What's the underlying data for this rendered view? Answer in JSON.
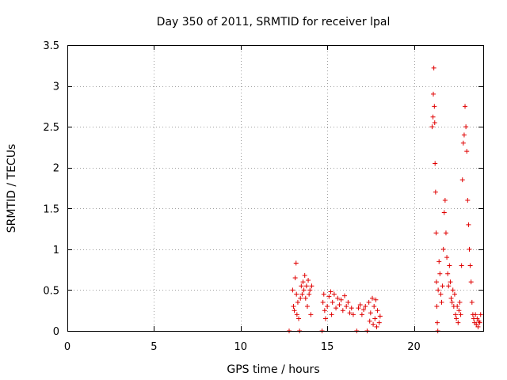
{
  "chart_data": {
    "type": "scatter",
    "title": "Day 350 of 2011, SRMTID for receiver lpal",
    "xlabel": "GPS time / hours",
    "ylabel": "SRMTID / TECUs",
    "xlim": [
      0,
      24
    ],
    "ylim": [
      0,
      3.5
    ],
    "grid": true,
    "marker": "plus",
    "color": "#e00000",
    "xticks": [
      {
        "value": 0,
        "label": "0"
      },
      {
        "value": 5,
        "label": "5"
      },
      {
        "value": 10,
        "label": "10"
      },
      {
        "value": 15,
        "label": "15"
      },
      {
        "value": 20,
        "label": "20"
      }
    ],
    "yticks": [
      {
        "value": 0,
        "label": "0"
      },
      {
        "value": 0.5,
        "label": "0.5"
      },
      {
        "value": 1,
        "label": "1"
      },
      {
        "value": 1.5,
        "label": "1.5"
      },
      {
        "value": 2,
        "label": "2"
      },
      {
        "value": 2.5,
        "label": "2.5"
      },
      {
        "value": 3,
        "label": "3"
      },
      {
        "value": 3.5,
        "label": "3.5"
      }
    ],
    "series": [
      {
        "name": "SRMTID",
        "points": [
          [
            12.8,
            0.0
          ],
          [
            13.0,
            0.5
          ],
          [
            13.05,
            0.3
          ],
          [
            13.1,
            0.25
          ],
          [
            13.15,
            0.65
          ],
          [
            13.2,
            0.83
          ],
          [
            13.22,
            0.45
          ],
          [
            13.25,
            0.2
          ],
          [
            13.3,
            0.35
          ],
          [
            13.35,
            0.15
          ],
          [
            13.4,
            0.0
          ],
          [
            13.45,
            0.4
          ],
          [
            13.5,
            0.55
          ],
          [
            13.55,
            0.45
          ],
          [
            13.6,
            0.6
          ],
          [
            13.65,
            0.5
          ],
          [
            13.7,
            0.68
          ],
          [
            13.75,
            0.4
          ],
          [
            13.8,
            0.55
          ],
          [
            13.85,
            0.3
          ],
          [
            13.9,
            0.62
          ],
          [
            13.95,
            0.45
          ],
          [
            14.0,
            0.5
          ],
          [
            14.05,
            0.2
          ],
          [
            14.1,
            0.55
          ],
          [
            14.7,
            0.0
          ],
          [
            14.75,
            0.35
          ],
          [
            14.8,
            0.45
          ],
          [
            14.85,
            0.25
          ],
          [
            14.9,
            0.15
          ],
          [
            15.0,
            0.3
          ],
          [
            15.1,
            0.42
          ],
          [
            15.2,
            0.48
          ],
          [
            15.25,
            0.2
          ],
          [
            15.3,
            0.35
          ],
          [
            15.4,
            0.45
          ],
          [
            15.5,
            0.28
          ],
          [
            15.6,
            0.4
          ],
          [
            15.7,
            0.32
          ],
          [
            15.8,
            0.38
          ],
          [
            15.9,
            0.25
          ],
          [
            16.0,
            0.43
          ],
          [
            16.1,
            0.3
          ],
          [
            16.2,
            0.35
          ],
          [
            16.3,
            0.22
          ],
          [
            16.4,
            0.28
          ],
          [
            16.5,
            0.2
          ],
          [
            16.7,
            0.0
          ],
          [
            16.8,
            0.28
          ],
          [
            16.9,
            0.32
          ],
          [
            17.0,
            0.2
          ],
          [
            17.1,
            0.26
          ],
          [
            17.2,
            0.3
          ],
          [
            17.3,
            0.0
          ],
          [
            17.4,
            0.35
          ],
          [
            17.45,
            0.12
          ],
          [
            17.5,
            0.22
          ],
          [
            17.6,
            0.4
          ],
          [
            17.65,
            0.08
          ],
          [
            17.7,
            0.3
          ],
          [
            17.75,
            0.15
          ],
          [
            17.8,
            0.38
          ],
          [
            17.85,
            0.05
          ],
          [
            17.9,
            0.25
          ],
          [
            18.0,
            0.1
          ],
          [
            18.05,
            0.18
          ],
          [
            21.05,
            2.5
          ],
          [
            21.1,
            2.62
          ],
          [
            21.12,
            2.9
          ],
          [
            21.15,
            3.22
          ],
          [
            21.18,
            2.75
          ],
          [
            21.2,
            2.55
          ],
          [
            21.22,
            2.05
          ],
          [
            21.25,
            1.7
          ],
          [
            21.28,
            1.2
          ],
          [
            21.3,
            0.6
          ],
          [
            21.32,
            0.3
          ],
          [
            21.35,
            0.1
          ],
          [
            21.38,
            0.0
          ],
          [
            21.4,
            0.5
          ],
          [
            21.45,
            0.85
          ],
          [
            21.5,
            0.7
          ],
          [
            21.55,
            0.45
          ],
          [
            21.6,
            0.35
          ],
          [
            21.65,
            0.55
          ],
          [
            21.7,
            1.0
          ],
          [
            21.75,
            1.45
          ],
          [
            21.8,
            1.6
          ],
          [
            21.85,
            1.2
          ],
          [
            21.9,
            0.9
          ],
          [
            21.95,
            0.7
          ],
          [
            22.0,
            0.55
          ],
          [
            22.05,
            0.8
          ],
          [
            22.1,
            0.6
          ],
          [
            22.15,
            0.4
          ],
          [
            22.2,
            0.35
          ],
          [
            22.25,
            0.5
          ],
          [
            22.3,
            0.3
          ],
          [
            22.35,
            0.45
          ],
          [
            22.4,
            0.2
          ],
          [
            22.45,
            0.15
          ],
          [
            22.5,
            0.3
          ],
          [
            22.55,
            0.1
          ],
          [
            22.6,
            0.25
          ],
          [
            22.65,
            0.35
          ],
          [
            22.7,
            0.2
          ],
          [
            22.75,
            0.8
          ],
          [
            22.8,
            1.85
          ],
          [
            22.85,
            2.3
          ],
          [
            22.9,
            2.4
          ],
          [
            22.95,
            2.75
          ],
          [
            23.0,
            2.5
          ],
          [
            23.05,
            2.2
          ],
          [
            23.1,
            1.6
          ],
          [
            23.15,
            1.3
          ],
          [
            23.2,
            1.0
          ],
          [
            23.25,
            0.8
          ],
          [
            23.3,
            0.6
          ],
          [
            23.35,
            0.35
          ],
          [
            23.4,
            0.2
          ],
          [
            23.45,
            0.15
          ],
          [
            23.5,
            0.1
          ],
          [
            23.55,
            0.2
          ],
          [
            23.6,
            0.08
          ],
          [
            23.65,
            0.15
          ],
          [
            23.7,
            0.05
          ],
          [
            23.75,
            0.12
          ],
          [
            23.8,
            0.1
          ],
          [
            23.85,
            0.2
          ]
        ]
      }
    ]
  }
}
